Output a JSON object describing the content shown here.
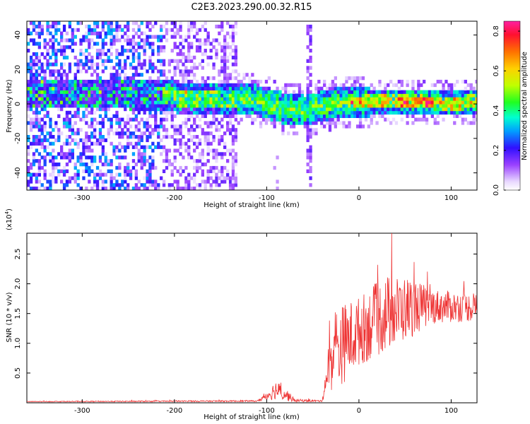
{
  "title": "C2E3.2023.290.00.32.R15",
  "chart_data": [
    {
      "type": "heatmap",
      "xlabel": "Height of straight line (km)",
      "ylabel": "Frequency (Hz)",
      "xlim": [
        -360,
        128
      ],
      "ylim": [
        -50,
        48
      ],
      "xticks": [
        -300,
        -200,
        -100,
        0,
        100
      ],
      "yticks": [
        -40,
        -20,
        0,
        20,
        40
      ],
      "colorbar": {
        "label": "Normalized spectral amplitude",
        "range": [
          0.0,
          0.85
        ],
        "ticks": [
          "0.0",
          "0.2",
          "0.4",
          "0.6",
          "0.8"
        ],
        "tick_values": [
          0.0,
          0.2,
          0.4,
          0.6,
          0.8
        ]
      },
      "band_center_hz": [
        {
          "x": -360,
          "f": 5
        },
        {
          "x": -250,
          "f": 5
        },
        {
          "x": -200,
          "f": 3
        },
        {
          "x": -140,
          "f": 2
        },
        {
          "x": -110,
          "f": 1
        },
        {
          "x": -80,
          "f": -4
        },
        {
          "x": -60,
          "f": -5
        },
        {
          "x": -40,
          "f": -2
        },
        {
          "x": -20,
          "f": 0
        },
        {
          "x": 0,
          "f": 0
        },
        {
          "x": 50,
          "f": 1
        },
        {
          "x": 100,
          "f": -1
        },
        {
          "x": 128,
          "f": 1
        }
      ]
    },
    {
      "type": "line",
      "xlabel": "Height of straight line (km)",
      "ylabel": "SNR (10 * v/v)",
      "scale_label": "(x10",
      "scale_exp": "4",
      "scale_close": ")",
      "xlim": [
        -360,
        128
      ],
      "ylim": [
        0,
        2.85
      ],
      "xticks": [
        -300,
        -200,
        -100,
        0,
        100
      ],
      "yticks": [
        "0.5",
        "1.0",
        "1.5",
        "2.0",
        "2.5"
      ],
      "ytick_values": [
        0.5,
        1.0,
        1.5,
        2.0,
        2.5
      ],
      "series": [
        {
          "name": "SNR",
          "color": "#ee3333",
          "envelope": [
            {
              "x": -360,
              "mean": 0.02,
              "amp": 0.01
            },
            {
              "x": -110,
              "mean": 0.03,
              "amp": 0.02
            },
            {
              "x": -100,
              "mean": 0.12,
              "amp": 0.12
            },
            {
              "x": -90,
              "mean": 0.22,
              "amp": 0.25
            },
            {
              "x": -80,
              "mean": 0.15,
              "amp": 0.18
            },
            {
              "x": -70,
              "mean": 0.04,
              "amp": 0.04
            },
            {
              "x": -40,
              "mean": 0.03,
              "amp": 0.02
            },
            {
              "x": -33,
              "mean": 0.6,
              "amp": 0.6
            },
            {
              "x": -25,
              "mean": 0.9,
              "amp": 1.1
            },
            {
              "x": 0,
              "mean": 1.2,
              "amp": 0.9
            },
            {
              "x": 30,
              "mean": 1.5,
              "amp": 1.0
            },
            {
              "x": 55,
              "mean": 1.6,
              "amp": 0.8
            },
            {
              "x": 80,
              "mean": 1.62,
              "amp": 0.45
            },
            {
              "x": 128,
              "mean": 1.6,
              "amp": 0.35
            }
          ]
        }
      ]
    }
  ]
}
